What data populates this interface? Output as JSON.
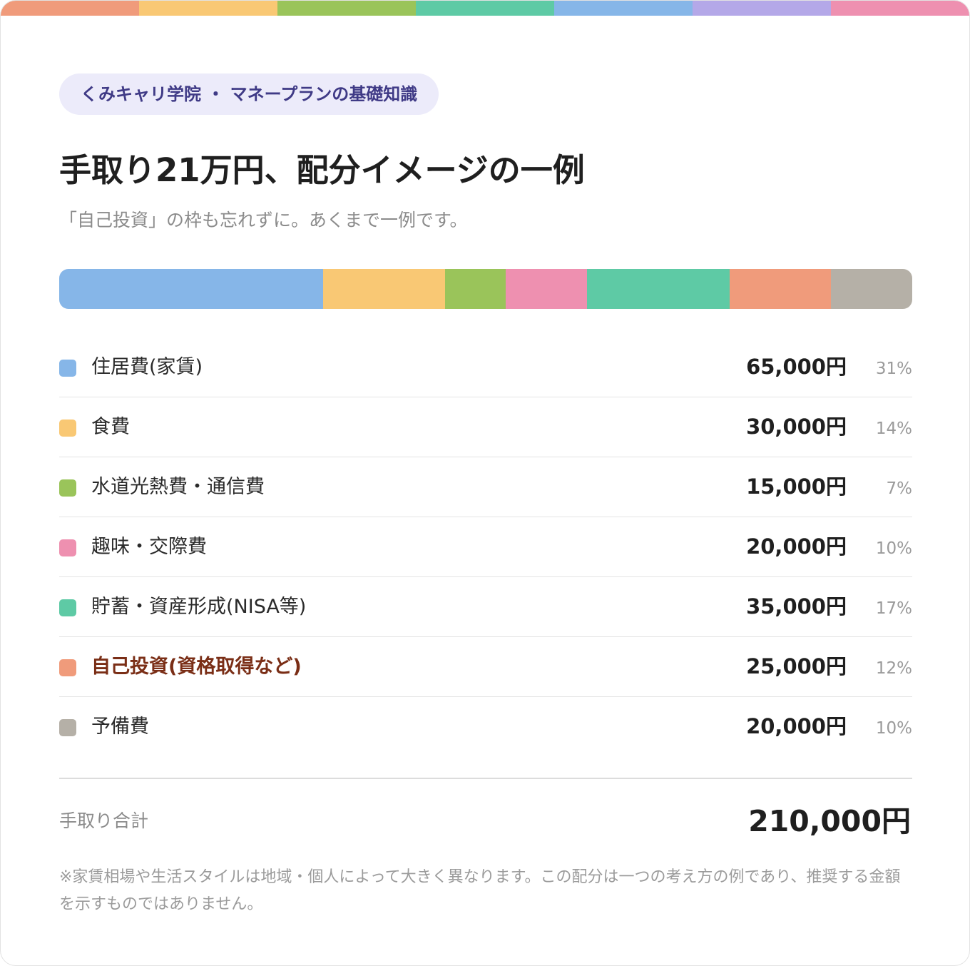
{
  "badge": "くみキャリ学院 ・ マネープランの基礎知識",
  "title": "手取り21万円、配分イメージの一例",
  "subtitle": "「自己投資」の枠も忘れずに。あくまで一例です。",
  "top_stripe_colors": [
    "#f09b7b",
    "#f9c874",
    "#9ac45a",
    "#5ecaa5",
    "#86b6e8",
    "#b4a8e8",
    "#ee90b0"
  ],
  "chart_data": {
    "type": "bar",
    "subtype": "stacked-horizontal",
    "unit": "円",
    "categories": [
      "住居費(家賃)",
      "食費",
      "水道光熱費・通信費",
      "趣味・交際費",
      "貯蓄・資産形成(NISA等)",
      "自己投資(資格取得など)",
      "予備費"
    ],
    "values": [
      65000,
      30000,
      15000,
      20000,
      35000,
      25000,
      20000
    ],
    "bar_order": [
      0,
      1,
      2,
      3,
      4,
      5,
      6
    ],
    "colors": [
      "#86b6e8",
      "#f9c874",
      "#9ac45a",
      "#ee90b0",
      "#5ecaa5",
      "#f09b7b",
      "#b5b0a7"
    ],
    "highlight_index": 5,
    "total": 210000
  },
  "rows": [
    {
      "label": "住居費(家賃)",
      "amount": "65,000円",
      "pct": "31%"
    },
    {
      "label": "食費",
      "amount": "30,000円",
      "pct": "14%"
    },
    {
      "label": "水道光熱費・通信費",
      "amount": "15,000円",
      "pct": "7%"
    },
    {
      "label": "趣味・交際費",
      "amount": "20,000円",
      "pct": "10%"
    },
    {
      "label": "貯蓄・資産形成(NISA等)",
      "amount": "35,000円",
      "pct": "17%"
    },
    {
      "label": "自己投資(資格取得など)",
      "amount": "25,000円",
      "pct": "12%"
    },
    {
      "label": "予備費",
      "amount": "20,000円",
      "pct": "10%"
    }
  ],
  "total": {
    "label": "手取り合計",
    "value": "210,000円"
  },
  "note": "※家賃相場や生活スタイルは地域・個人によって大きく異なります。この配分は一つの考え方の例であり、推奨する金額を示すものではありません。"
}
